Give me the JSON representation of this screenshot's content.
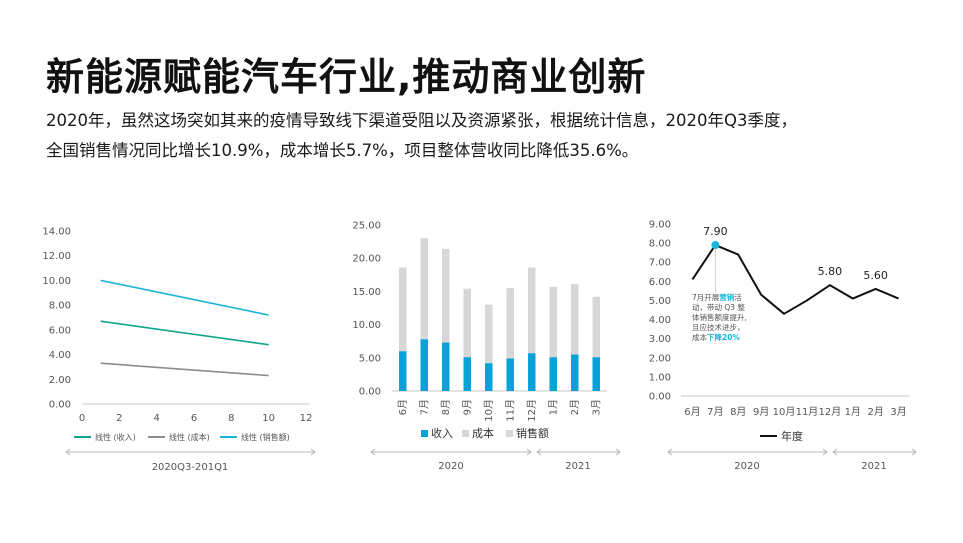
{
  "header": {
    "title": "新能源赋能汽车行业,推动商业创新",
    "subtitle_line1": "2020年，虽然这场突如其来的疫情导致线下渠道受阻以及资源紧张，根据统计信息，2020年Q3季度，",
    "subtitle_line2": "全国销售情况同比增长10.9%，成本增长5.7%，项目整体营收同比降低35.6%。"
  },
  "colors": {
    "teal": "#10a58d",
    "gray": "#8c8c8c",
    "cyan": "#19b4d6",
    "blue": "#0aa0d8",
    "light_gray": "#d7d7d7",
    "black": "#111111"
  },
  "chart_data": [
    {
      "type": "line",
      "x_ticks": [
        "0",
        "2",
        "4",
        "6",
        "8",
        "10",
        "12"
      ],
      "y_ticks": [
        "0.00",
        "2.00",
        "4.00",
        "6.00",
        "8.00",
        "10.00",
        "12.00",
        "14.00"
      ],
      "xlim": [
        0,
        12
      ],
      "ylim": [
        0,
        14
      ],
      "series": [
        {
          "name": "线性 (收入)",
          "color": "#10a58d",
          "x": [
            1,
            10
          ],
          "y": [
            6.7,
            4.8
          ]
        },
        {
          "name": "线性 (成本)",
          "color": "#8c8c8c",
          "x": [
            1,
            10
          ],
          "y": [
            3.3,
            2.3
          ]
        },
        {
          "name": "线性 (销售额)",
          "color": "#19b4d6",
          "x": [
            1,
            10
          ],
          "y": [
            10.0,
            7.2
          ]
        }
      ],
      "caption": "2020Q3-201Q1"
    },
    {
      "type": "bar",
      "stacked": true,
      "categories": [
        "6月",
        "7月",
        "8月",
        "9月",
        "10月",
        "11月",
        "12月",
        "1月",
        "2月",
        "3月"
      ],
      "y_ticks": [
        "0.00",
        "5.00",
        "10.00",
        "15.00",
        "20.00",
        "25.00"
      ],
      "ylim": [
        0,
        25
      ],
      "series": [
        {
          "name": "收入",
          "color": "#0aa0d8",
          "values": [
            6.0,
            7.8,
            7.3,
            5.1,
            4.2,
            4.9,
            5.7,
            5.1,
            5.5,
            5.1
          ]
        },
        {
          "name": "成本",
          "color": "#d7d7d7",
          "values": [
            12.6,
            15.2,
            14.1,
            10.3,
            8.8,
            10.6,
            12.9,
            10.6,
            10.6,
            9.1
          ]
        }
      ],
      "legend_extra": "销售额",
      "groups": [
        {
          "label": "2020"
        },
        {
          "label": "2021"
        }
      ]
    },
    {
      "type": "line",
      "categories": [
        "6月",
        "7月",
        "8月",
        "9月",
        "10月",
        "11月",
        "12月",
        "1月",
        "2月",
        "3月"
      ],
      "y_ticks": [
        "0.00",
        "1.00",
        "2.00",
        "3.00",
        "4.00",
        "5.00",
        "6.00",
        "7.00",
        "8.00",
        "9.00"
      ],
      "ylim": [
        0,
        9
      ],
      "series": [
        {
          "name": "年度",
          "color": "#111111",
          "values": [
            6.1,
            7.9,
            7.4,
            5.3,
            4.3,
            5.0,
            5.8,
            5.1,
            5.6,
            5.1
          ]
        }
      ],
      "data_labels": [
        {
          "index": 1,
          "text": "7.90"
        },
        {
          "index": 6,
          "text": "5.80"
        },
        {
          "index": 8,
          "text": "5.60"
        }
      ],
      "annotation": {
        "lines": [
          [
            {
              "t": "7月开展",
              "hl": false
            },
            {
              "t": "营销",
              "hl": true
            },
            {
              "t": "活",
              "hl": false
            }
          ],
          [
            {
              "t": "动，带动 Q3 整",
              "hl": false
            }
          ],
          [
            {
              "t": "体销售额度提升,",
              "hl": false
            }
          ],
          [
            {
              "t": "且应技术进步，",
              "hl": false
            }
          ],
          [
            {
              "t": "成本",
              "hl": false
            },
            {
              "t": "下降20%",
              "hl": true
            }
          ]
        ]
      },
      "groups": [
        {
          "label": "2020"
        },
        {
          "label": "2021"
        }
      ]
    }
  ]
}
